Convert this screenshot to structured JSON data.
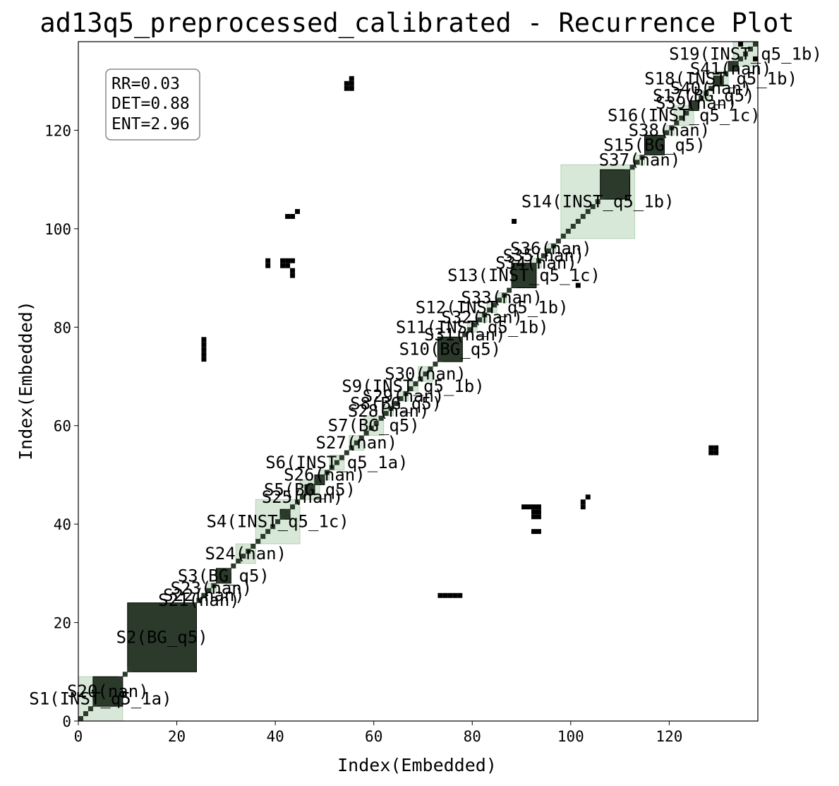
{
  "chart_data": {
    "type": "heatmap",
    "title": "ad13q5_preprocessed_calibrated - Recurrence Plot",
    "xlabel": "Index(Embedded)",
    "ylabel": "Index(Embedded)",
    "xlim": [
      0,
      138
    ],
    "ylim": [
      0,
      138
    ],
    "xticks": [
      0,
      20,
      40,
      60,
      80,
      100,
      120
    ],
    "yticks": [
      0,
      20,
      40,
      60,
      80,
      100,
      120
    ],
    "grid": false,
    "colors": {
      "recurrence": "#000000",
      "segment_fill": "#8fbc8f",
      "segment_edge": "#8fbc8f",
      "overlap": "#2b3a2b"
    },
    "stats": {
      "lines": [
        "RR=0.03",
        "DET=0.88",
        "ENT=2.96"
      ],
      "placement": "top-left"
    },
    "segments": [
      {
        "label": "S1(INST_q5_1a)",
        "start": 0,
        "end": 9
      },
      {
        "label": "S20(nan)",
        "start": 3,
        "end": 9
      },
      {
        "label": "S2(BG_q5)",
        "start": 10,
        "end": 24
      },
      {
        "label": "S21(nan)",
        "start": 24,
        "end": 25
      },
      {
        "label": "S22(nan)",
        "start": 25,
        "end": 26
      },
      {
        "label": "S23(nan)",
        "start": 26,
        "end": 28
      },
      {
        "label": "S3(BG_q5)",
        "start": 28,
        "end": 31
      },
      {
        "label": "S24(nan)",
        "start": 32,
        "end": 36
      },
      {
        "label": "S4(INST_q5_1c)",
        "start": 36,
        "end": 45
      },
      {
        "label": "S25(nan)",
        "start": 45,
        "end": 46
      },
      {
        "label": "S5(BG_q5)",
        "start": 45,
        "end": 49
      },
      {
        "label": "S26(nan)",
        "start": 49,
        "end": 51
      },
      {
        "label": "S6(INST_q5_1a)",
        "start": 51,
        "end": 54
      },
      {
        "label": "S27(nan)",
        "start": 55,
        "end": 58
      },
      {
        "label": "S7(BG_q5)",
        "start": 58,
        "end": 62
      },
      {
        "label": "S28(nan)",
        "start": 62,
        "end": 64
      },
      {
        "label": "S8(BG_q5)",
        "start": 64,
        "end": 65
      },
      {
        "label": "S29(nan)",
        "start": 65,
        "end": 67
      },
      {
        "label": "S9(INST_q5_1b)",
        "start": 67,
        "end": 69
      },
      {
        "label": "S30(nan)",
        "start": 69,
        "end": 72
      },
      {
        "label": "S10(BG_q5)",
        "start": 73,
        "end": 78
      },
      {
        "label": "S31(nan)",
        "start": 78,
        "end": 79
      },
      {
        "label": "S11(INST_q5_1b)",
        "start": 79,
        "end": 81
      },
      {
        "label": "S32(nan)",
        "start": 81,
        "end": 83
      },
      {
        "label": "S12(INST_q5_1b)",
        "start": 83,
        "end": 85
      },
      {
        "label": "S33(nan)",
        "start": 85,
        "end": 87
      },
      {
        "label": "S13(INST_q5_1c)",
        "start": 88,
        "end": 93
      },
      {
        "label": "S34(nan)",
        "start": 92,
        "end": 94
      },
      {
        "label": "S35(nan)",
        "start": 94,
        "end": 95
      },
      {
        "label": "S36(nan)",
        "start": 95,
        "end": 97
      },
      {
        "label": "S14(INST_q5_1b)",
        "start": 98,
        "end": 113
      },
      {
        "label": "S37(nan)",
        "start": 113,
        "end": 115
      },
      {
        "label": "S15(BG_q5)",
        "start": 115,
        "end": 119
      },
      {
        "label": "S38(nan)",
        "start": 119,
        "end": 121
      },
      {
        "label": "S16(INST_q5_1c)",
        "start": 121,
        "end": 125
      },
      {
        "label": "S39(nan)",
        "start": 125,
        "end": 126
      },
      {
        "label": "S17(BG_q5)",
        "start": 126,
        "end": 128
      },
      {
        "label": "S40(nan)",
        "start": 128,
        "end": 129
      },
      {
        "label": "S18(INST_q5_1b)",
        "start": 129,
        "end": 132
      },
      {
        "label": "S41(nan)",
        "start": 132,
        "end": 133
      },
      {
        "label": "S19(INST_q5_1b)",
        "start": 133,
        "end": 138
      }
    ],
    "recurrence_blocks": [
      {
        "start": 3,
        "end": 9
      },
      {
        "start": 10,
        "end": 24
      },
      {
        "start": 28,
        "end": 31
      },
      {
        "start": 41,
        "end": 43
      },
      {
        "start": 46,
        "end": 48
      },
      {
        "start": 48,
        "end": 50
      },
      {
        "start": 73,
        "end": 78
      },
      {
        "start": 88,
        "end": 93
      },
      {
        "start": 106,
        "end": 112
      },
      {
        "start": 115,
        "end": 119
      },
      {
        "start": 124,
        "end": 126
      },
      {
        "start": 129,
        "end": 131
      },
      {
        "start": 132,
        "end": 134
      }
    ],
    "offdiagonal_points": [
      [
        54,
        128
      ],
      [
        55,
        128
      ],
      [
        54,
        129
      ],
      [
        55,
        129
      ],
      [
        55,
        130
      ],
      [
        42,
        102
      ],
      [
        43,
        102
      ],
      [
        44,
        103
      ],
      [
        38,
        92
      ],
      [
        38,
        93
      ],
      [
        41,
        92
      ],
      [
        42,
        92
      ],
      [
        41,
        93
      ],
      [
        42,
        93
      ],
      [
        43,
        93
      ],
      [
        43,
        91
      ],
      [
        43,
        90
      ],
      [
        25,
        73
      ],
      [
        25,
        74
      ],
      [
        25,
        75
      ],
      [
        25,
        76
      ],
      [
        25,
        77
      ],
      [
        88,
        101
      ],
      [
        101,
        88
      ],
      [
        128,
        54
      ],
      [
        129,
        54
      ],
      [
        128,
        55
      ],
      [
        129,
        55
      ],
      [
        93,
        42
      ],
      [
        92,
        42
      ],
      [
        93,
        41
      ],
      [
        92,
        41
      ],
      [
        91,
        43
      ],
      [
        90,
        43
      ],
      [
        92,
        43
      ],
      [
        93,
        43
      ],
      [
        92,
        38
      ],
      [
        93,
        38
      ],
      [
        102,
        43
      ],
      [
        102,
        44
      ],
      [
        103,
        45
      ],
      [
        73,
        25
      ],
      [
        74,
        25
      ],
      [
        75,
        25
      ],
      [
        76,
        25
      ],
      [
        77,
        25
      ],
      [
        134,
        137
      ],
      [
        137,
        134
      ],
      [
        135,
        138
      ],
      [
        138,
        135
      ]
    ]
  }
}
